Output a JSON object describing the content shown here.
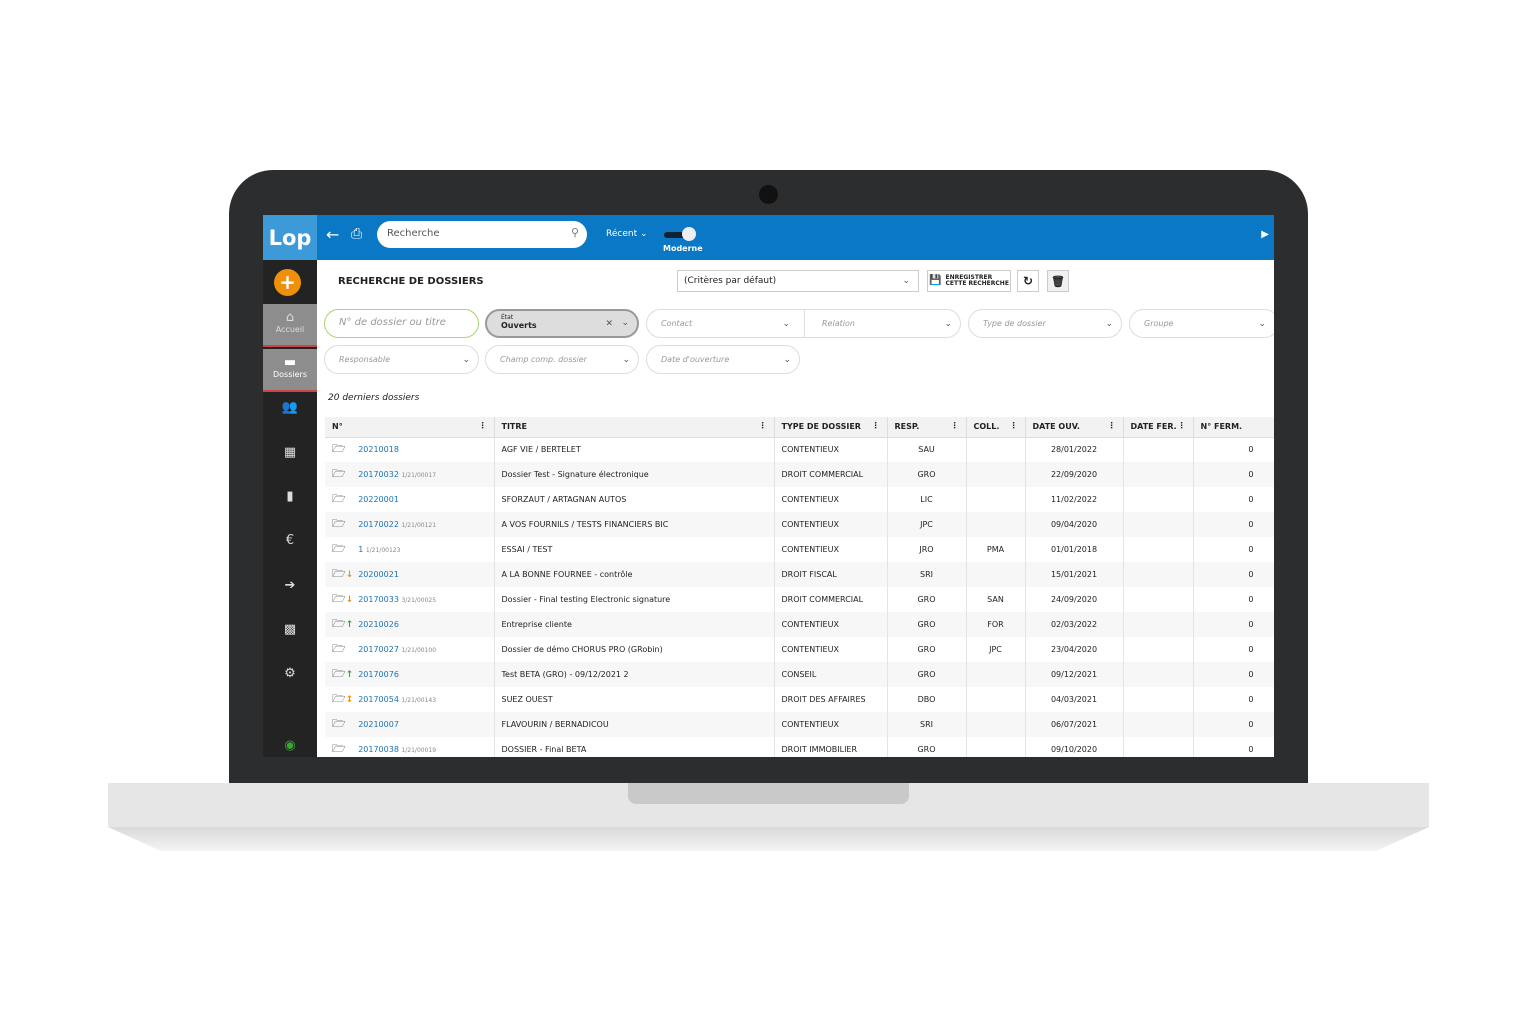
{
  "app": {
    "logo": "Lop",
    "search_placeholder": "Recherche",
    "recent": "Récent",
    "mode": "Moderne"
  },
  "sidebar": {
    "items": [
      {
        "label": "Accueil",
        "icon": "home-icon"
      },
      {
        "label": "Dossiers",
        "icon": "folder-icon"
      },
      {
        "icon": "users-icon"
      },
      {
        "icon": "calendar-icon"
      },
      {
        "icon": "document-icon"
      },
      {
        "icon": "euro-icon"
      },
      {
        "icon": "export-icon"
      },
      {
        "icon": "puzzle-icon"
      },
      {
        "icon": "gear-icon"
      },
      {
        "icon": "globe-logo-icon"
      }
    ]
  },
  "page": {
    "title": "RECHERCHE DE DOSSIERS",
    "criteria": "(Critères par défaut)",
    "save_line1": "ENREGISTRER",
    "save_line2": "CETTE RECHERCHE",
    "count_note": "20 derniers dossiers"
  },
  "filters": {
    "search_placeholder": "N° de dossier ou titre",
    "etat_label": "État",
    "etat_value": "Ouverts",
    "contact": "Contact",
    "relation": "Relation",
    "type": "Type de dossier",
    "groupe": "Groupe",
    "responsable": "Responsable",
    "champ": "Champ comp. dossier",
    "date": "Date d'ouverture"
  },
  "colors": {
    "header": "#0a78c4",
    "accent": "#f0900a",
    "link": "#1a73b8",
    "up": "#3aa635",
    "down": "#f0900a"
  },
  "table": {
    "columns": [
      "N°",
      "TITRE",
      "TYPE DE DOSSIER",
      "RESP.",
      "COLL.",
      "DATE OUV.",
      "DATE FER.",
      "N° FERM."
    ],
    "rows": [
      [
        "20210018",
        "",
        "AGF VIE / BERTELET",
        "CONTENTIEUX",
        "SAU",
        "",
        "28/01/2022",
        "",
        "0",
        ""
      ],
      [
        "20170032",
        "1/21/00017",
        "Dossier Test - Signature électronique",
        "DROIT COMMERCIAL",
        "GRO",
        "",
        "22/09/2020",
        "",
        "0",
        ""
      ],
      [
        "20220001",
        "",
        "SFORZAUT / ARTAGNAN AUTOS",
        "CONTENTIEUX",
        "LIC",
        "",
        "11/02/2022",
        "",
        "0",
        ""
      ],
      [
        "20170022",
        "1/21/00121",
        "A VOS FOURNILS / TESTS FINANCIERS BIC",
        "CONTENTIEUX",
        "JPC",
        "",
        "09/04/2020",
        "",
        "0",
        ""
      ],
      [
        "1",
        "1/21/00123",
        "ESSAI / TEST",
        "CONTENTIEUX",
        "JRO",
        "PMA",
        "01/01/2018",
        "",
        "0",
        ""
      ],
      [
        "20200021",
        "",
        "A LA BONNE FOURNEE - contrôle",
        "DROIT FISCAL",
        "SRI",
        "",
        "15/01/2021",
        "",
        "0",
        "down"
      ],
      [
        "20170033",
        "3/21/00025",
        "Dossier - Final testing Electronic signature",
        "DROIT COMMERCIAL",
        "GRO",
        "SAN",
        "24/09/2020",
        "",
        "0",
        "down"
      ],
      [
        "20210026",
        "",
        "Entreprise cliente",
        "CONTENTIEUX",
        "GRO",
        "FOR",
        "02/03/2022",
        "",
        "0",
        "up"
      ],
      [
        "20170027",
        "1/21/00100",
        "Dossier de démo CHORUS PRO (GRobin)",
        "CONTENTIEUX",
        "GRO",
        "JPC",
        "23/04/2020",
        "",
        "0",
        ""
      ],
      [
        "20170076",
        "",
        "Test BETA (GRO) - 09/12/2021 2",
        "CONSEIL",
        "GRO",
        "",
        "09/12/2021",
        "",
        "0",
        "up"
      ],
      [
        "20170054",
        "1/21/00143",
        "SUEZ OUEST",
        "DROIT DES AFFAIRES",
        "DBO",
        "",
        "04/03/2021",
        "",
        "0",
        "both"
      ],
      [
        "20210007",
        "",
        "FLAVOURIN / BERNADICOU",
        "CONTENTIEUX",
        "SRI",
        "",
        "06/07/2021",
        "",
        "0",
        ""
      ],
      [
        "20170038",
        "1/21/00019",
        "DOSSIER - Final BETA",
        "DROIT IMMOBILIER",
        "GRO",
        "",
        "09/10/2020",
        "",
        "0",
        ""
      ]
    ]
  }
}
